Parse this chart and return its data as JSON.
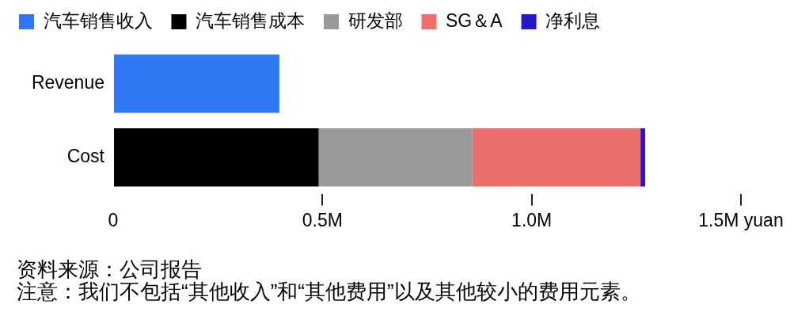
{
  "chart_data": {
    "type": "bar",
    "orientation": "horizontal",
    "stacked": true,
    "categories": [
      "Revenue",
      "Cost"
    ],
    "series": [
      {
        "name": "汽车销售收入",
        "color": "#2f77f5",
        "values": [
          0.397,
          null
        ]
      },
      {
        "name": "汽车销售成本",
        "color": "#000000",
        "values": [
          null,
          0.491
        ]
      },
      {
        "name": "研发部",
        "color": "#999999",
        "values": [
          null,
          0.367
        ]
      },
      {
        "name": "SG＆A",
        "color": "#eb6f6a",
        "values": [
          null,
          0.402
        ]
      },
      {
        "name": "净利息",
        "color": "#2318cf",
        "values": [
          null,
          0.011
        ]
      }
    ],
    "xlim": [
      0,
      1.5
    ],
    "xticks": [
      0,
      {
        "value": 0.5,
        "label": "0.5M"
      },
      {
        "value": 1,
        "label": "1.0M"
      },
      {
        "value": 1.5,
        "label": "1.5M yuan"
      }
    ],
    "legend": "top left",
    "annotations": [
      "资料来源：公司报告",
      "注意：我们不包括“其他收入”和“其他费用”以及其他较小的费用元素。"
    ]
  }
}
